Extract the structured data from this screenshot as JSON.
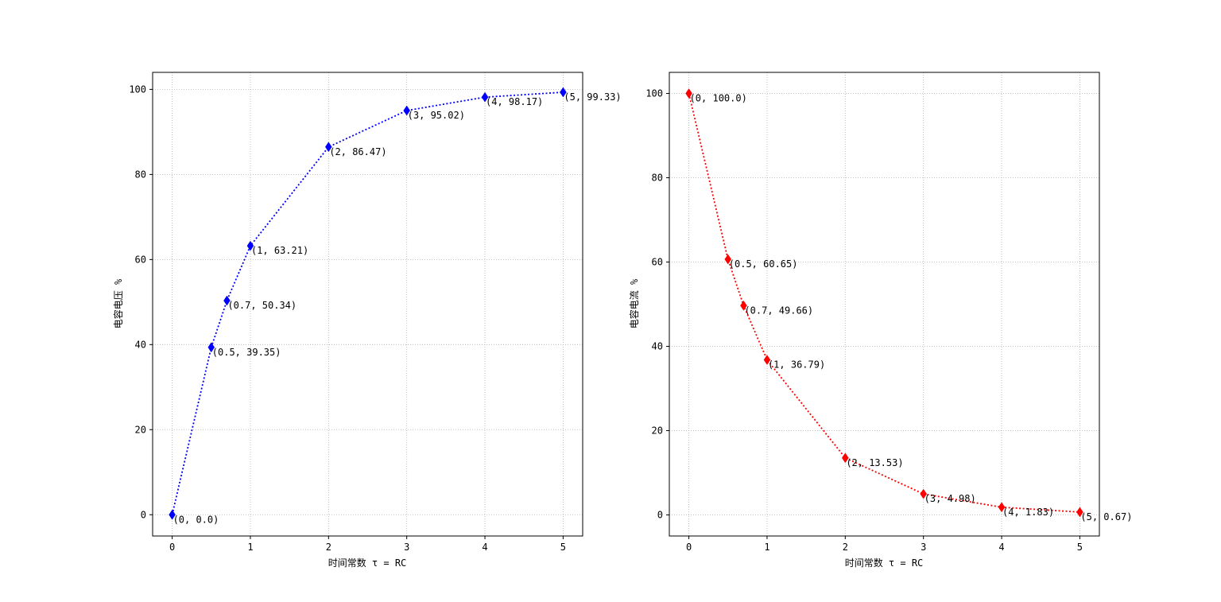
{
  "figure": {
    "background": "#ffffff",
    "grid_color": "#b0b0b0"
  },
  "chart_data": [
    {
      "type": "line",
      "xlabel": "时间常数 τ = RC",
      "ylabel": "电容电压 %",
      "x": [
        0,
        0.5,
        0.7,
        1,
        2,
        3,
        4,
        5
      ],
      "xlim": [
        -0.25,
        5.25
      ],
      "ylim": [
        -5,
        104
      ],
      "xticks": [
        0,
        1,
        2,
        3,
        4,
        5
      ],
      "yticks": [
        0,
        20,
        40,
        60,
        80,
        100
      ],
      "grid": true,
      "series": [
        {
          "values": [
            0.0,
            39.35,
            50.34,
            63.21,
            86.47,
            95.02,
            98.17,
            99.33
          ],
          "color": "#0000ff",
          "line_style": "dotted",
          "marker": "diamond"
        }
      ],
      "point_labels": [
        "(0, 0.0)",
        "(0.5, 39.35)",
        "(0.7, 50.34)",
        "(1, 63.21)",
        "(2, 86.47)",
        "(3, 95.02)",
        "(4, 98.17)",
        "(5, 99.33)"
      ]
    },
    {
      "type": "line",
      "xlabel": "时间常数 τ = RC",
      "ylabel": "电容电流 %",
      "x": [
        0,
        0.5,
        0.7,
        1,
        2,
        3,
        4,
        5
      ],
      "xlim": [
        -0.25,
        5.25
      ],
      "ylim": [
        -5,
        105
      ],
      "xticks": [
        0,
        1,
        2,
        3,
        4,
        5
      ],
      "yticks": [
        0,
        20,
        40,
        60,
        80,
        100
      ],
      "grid": true,
      "series": [
        {
          "values": [
            100.0,
            60.65,
            49.66,
            36.79,
            13.53,
            4.98,
            1.83,
            0.67
          ],
          "color": "#ff0000",
          "line_style": "dotted",
          "marker": "diamond"
        }
      ],
      "point_labels": [
        "(0, 100.0)",
        "(0.5, 60.65)",
        "(0.7, 49.66)",
        "(1, 36.79)",
        "(2, 13.53)",
        "(3, 4.98)",
        "(4, 1.83)",
        "(5, 0.67)"
      ]
    }
  ]
}
